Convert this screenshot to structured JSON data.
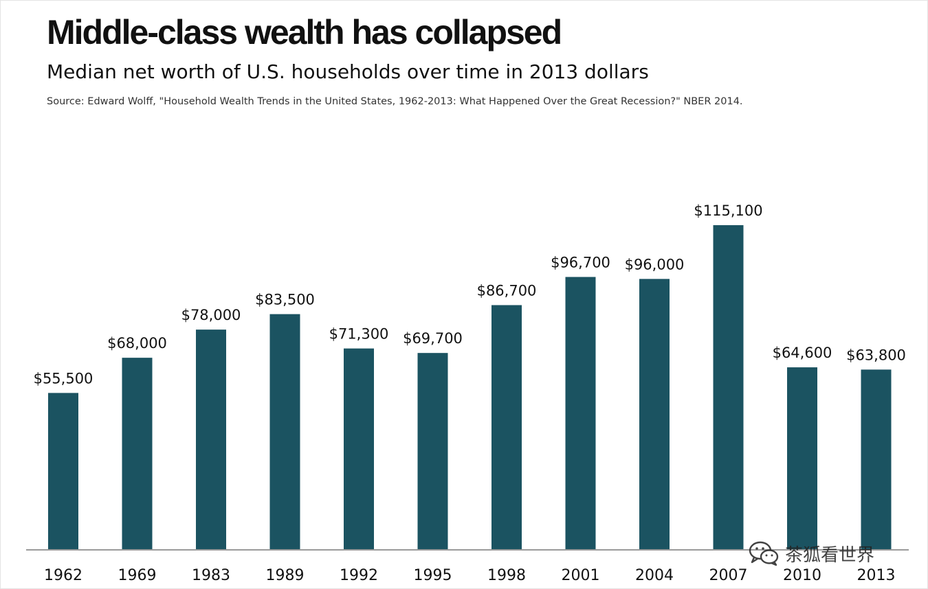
{
  "header": {
    "title": "Middle-class wealth has collapsed",
    "subtitle": "Median net worth of U.S. households over time in 2013 dollars",
    "source": "Source: Edward Wolff, \"Household Wealth Trends in the United States, 1962-2013: What Happened Over the Great Recession?\" NBER 2014."
  },
  "watermark": {
    "text": "茶狐看世界",
    "icon": "wechat-icon"
  },
  "colors": {
    "bar": "#1b5361",
    "baseline": "#9a9a9a",
    "text": "#111111"
  },
  "chart_data": {
    "type": "bar",
    "categories": [
      "1962",
      "1969",
      "1983",
      "1989",
      "1992",
      "1995",
      "1998",
      "2001",
      "2004",
      "2007",
      "2010",
      "2013"
    ],
    "values": [
      55500,
      68000,
      78000,
      83500,
      71300,
      69700,
      86700,
      96700,
      96000,
      115100,
      64600,
      63800
    ],
    "data_labels": [
      "$55,500",
      "$68,000",
      "$78,000",
      "$83,500",
      "$71,300",
      "$69,700",
      "$86,700",
      "$96,700",
      "$96,000",
      "$115,100",
      "$64,600",
      "$63,800"
    ],
    "title": "Middle-class wealth has collapsed",
    "xlabel": "",
    "ylabel": "",
    "ylim": [
      0,
      115100
    ],
    "grid": false,
    "legend": "none"
  }
}
